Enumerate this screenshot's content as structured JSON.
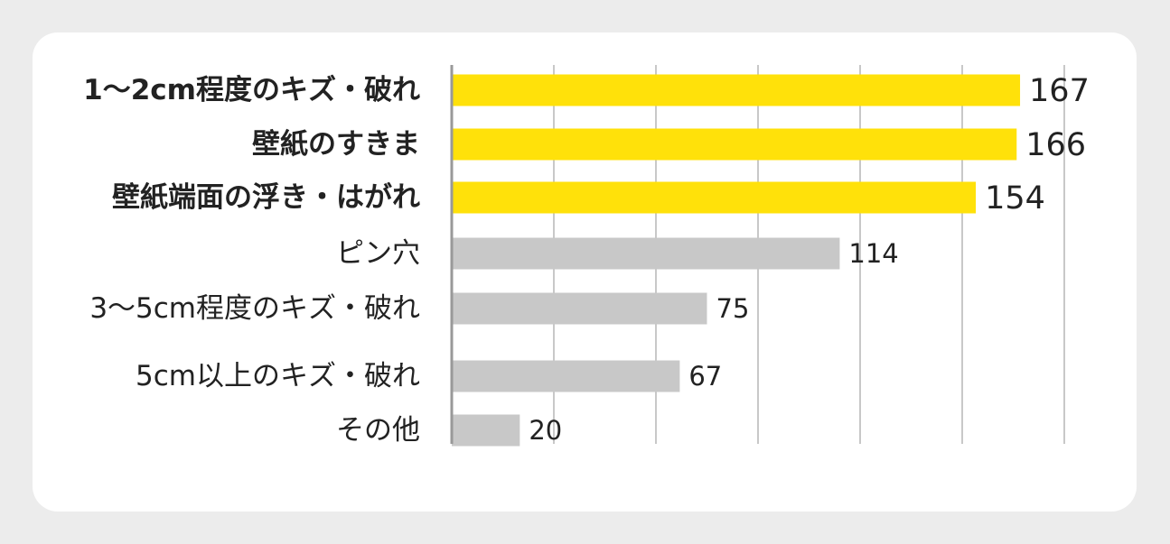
{
  "chart_data": {
    "type": "bar",
    "orientation": "horizontal",
    "categories": [
      "1〜2cm程度のキズ・破れ",
      "壁紙のすきま",
      "壁紙端面の浮き・はがれ",
      "ピン穴",
      "3〜5cm程度のキズ・破れ",
      "5cm以上のキズ・破れ",
      "その他"
    ],
    "values": [
      167,
      166,
      154,
      114,
      75,
      67,
      20
    ],
    "highlighted": [
      true,
      true,
      true,
      false,
      false,
      false,
      false
    ],
    "xlim": [
      0,
      180
    ],
    "grid": true,
    "title": "",
    "xlabel": "",
    "ylabel": "",
    "colors": {
      "highlight": "#ffe10a",
      "normal": "#c8c8c8",
      "gridline": "#aaaaaa",
      "axis": "#999999",
      "text": "#222222"
    }
  }
}
